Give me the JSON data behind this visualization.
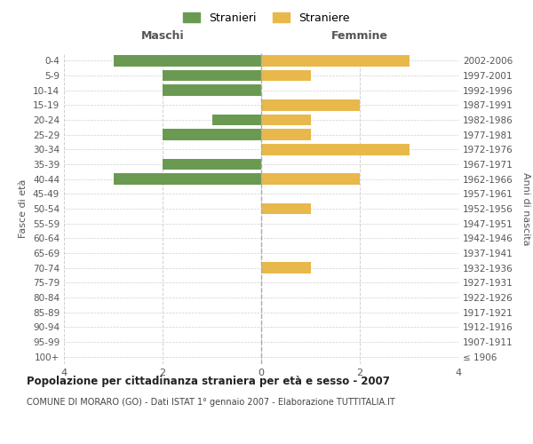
{
  "age_groups": [
    "100+",
    "95-99",
    "90-94",
    "85-89",
    "80-84",
    "75-79",
    "70-74",
    "65-69",
    "60-64",
    "55-59",
    "50-54",
    "45-49",
    "40-44",
    "35-39",
    "30-34",
    "25-29",
    "20-24",
    "15-19",
    "10-14",
    "5-9",
    "0-4"
  ],
  "birth_years": [
    "≤ 1906",
    "1907-1911",
    "1912-1916",
    "1917-1921",
    "1922-1926",
    "1927-1931",
    "1932-1936",
    "1937-1941",
    "1942-1946",
    "1947-1951",
    "1952-1956",
    "1957-1961",
    "1962-1966",
    "1967-1971",
    "1972-1976",
    "1977-1981",
    "1982-1986",
    "1987-1991",
    "1992-1996",
    "1997-2001",
    "2002-2006"
  ],
  "maschi": [
    0,
    0,
    0,
    0,
    0,
    0,
    0,
    0,
    0,
    0,
    0,
    0,
    3,
    2,
    0,
    2,
    1,
    0,
    2,
    2,
    3
  ],
  "femmine": [
    0,
    0,
    0,
    0,
    0,
    0,
    1,
    0,
    0,
    0,
    1,
    0,
    2,
    0,
    3,
    1,
    1,
    2,
    0,
    1,
    3
  ],
  "color_maschi": "#6a9a52",
  "color_femmine": "#e8b84b",
  "title": "Popolazione per cittadinanza straniera per età e sesso - 2007",
  "subtitle": "COMUNE DI MORARO (GO) - Dati ISTAT 1° gennaio 2007 - Elaborazione TUTTITALIA.IT",
  "xlabel_left": "Maschi",
  "xlabel_right": "Femmine",
  "ylabel_left": "Fasce di età",
  "ylabel_right": "Anni di nascita",
  "legend_maschi": "Stranieri",
  "legend_femmine": "Straniere",
  "xlim": 4,
  "bg_color": "#ffffff",
  "grid_color": "#d0d0d0"
}
